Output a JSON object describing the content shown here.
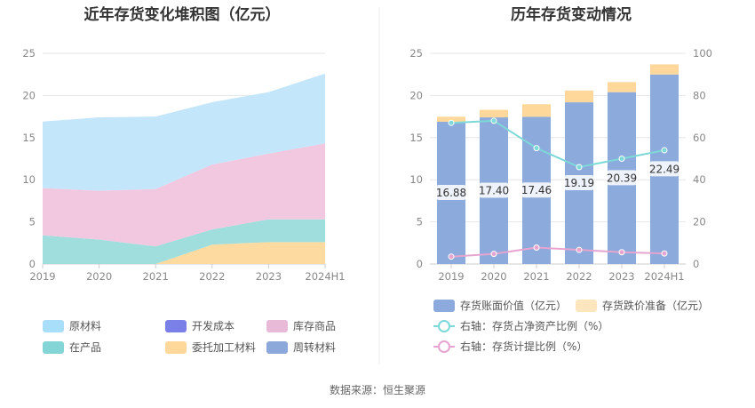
{
  "chart_data": [
    {
      "type": "area",
      "stacked": true,
      "title": "近年存货变化堆积图（亿元）",
      "categories": [
        "2019",
        "2020",
        "2021",
        "2022",
        "2023",
        "2024H1"
      ],
      "y_ticks": [
        "0",
        "5",
        "10",
        "15",
        "20",
        "25"
      ],
      "ylim": [
        0,
        25
      ],
      "grid": true,
      "legend_position": "bottom",
      "series": [
        {
          "name": "委托加工材料",
          "color": "#FDDBA0",
          "values": [
            0,
            0,
            0,
            2.3,
            2.6,
            2.6
          ]
        },
        {
          "name": "在产品",
          "color": "#A0DDDD",
          "values": [
            3.4,
            2.9,
            2.1,
            1.8,
            2.7,
            2.7
          ]
        },
        {
          "name": "库存商品",
          "color": "#F2C8E0",
          "values": [
            5.6,
            5.8,
            6.8,
            7.7,
            7.8,
            9.0
          ]
        },
        {
          "name": "原材料",
          "color": "#C3E6FA",
          "values": [
            7.9,
            8.7,
            8.6,
            7.4,
            7.3,
            8.3
          ]
        },
        {
          "name": "开发成本",
          "color": "#7B7FE8",
          "values": [
            0,
            0,
            0,
            0,
            0,
            0
          ]
        },
        {
          "name": "周转材料",
          "color": "#8CA8DA",
          "values": [
            0,
            0,
            0,
            0,
            0,
            0
          ]
        }
      ],
      "legend": [
        {
          "name": "原材料",
          "color": "#A9DEFA"
        },
        {
          "name": "开发成本",
          "color": "#7B7FE8"
        },
        {
          "name": "库存商品",
          "color": "#E9B9D8"
        },
        {
          "name": "在产品",
          "color": "#84D6D6"
        },
        {
          "name": "委托加工材料",
          "color": "#FDD89A"
        },
        {
          "name": "周转材料",
          "color": "#8CA8DA"
        }
      ]
    },
    {
      "type": "bar",
      "stacked": true,
      "title": "历年存货变动情况",
      "categories": [
        "2019",
        "2020",
        "2021",
        "2022",
        "2023",
        "2024H1"
      ],
      "y_ticks": [
        "0",
        "5",
        "10",
        "15",
        "20",
        "25"
      ],
      "y2_ticks": [
        "0",
        "20",
        "40",
        "60",
        "80",
        "100"
      ],
      "ylim": [
        0,
        25
      ],
      "y2lim": [
        0,
        100
      ],
      "grid": true,
      "legend_position": "bottom",
      "series": [
        {
          "name": "存货账面价值（亿元）",
          "color": "#8CAADB",
          "values": [
            16.88,
            17.4,
            17.46,
            19.19,
            20.39,
            22.49
          ],
          "labels": [
            "16.88",
            "17.40",
            "17.46",
            "19.19",
            "20.39",
            "22.49"
          ]
        },
        {
          "name": "存货跌价准备（亿元）",
          "color": "#FDD89A",
          "values": [
            0.6,
            0.9,
            1.5,
            1.4,
            1.2,
            1.2
          ]
        }
      ],
      "lines": [
        {
          "name": "右轴：存货占净资产比例（%）",
          "color": "#7DD8D8",
          "values": [
            67,
            68,
            55,
            46,
            50,
            54
          ]
        },
        {
          "name": "右轴：存货计提比例（%）",
          "color": "#E6A5D0",
          "values": [
            3.5,
            4.8,
            7.8,
            6.7,
            5.6,
            5.0
          ]
        }
      ]
    }
  ],
  "footer": {
    "source": "数据来源：恒生聚源"
  }
}
